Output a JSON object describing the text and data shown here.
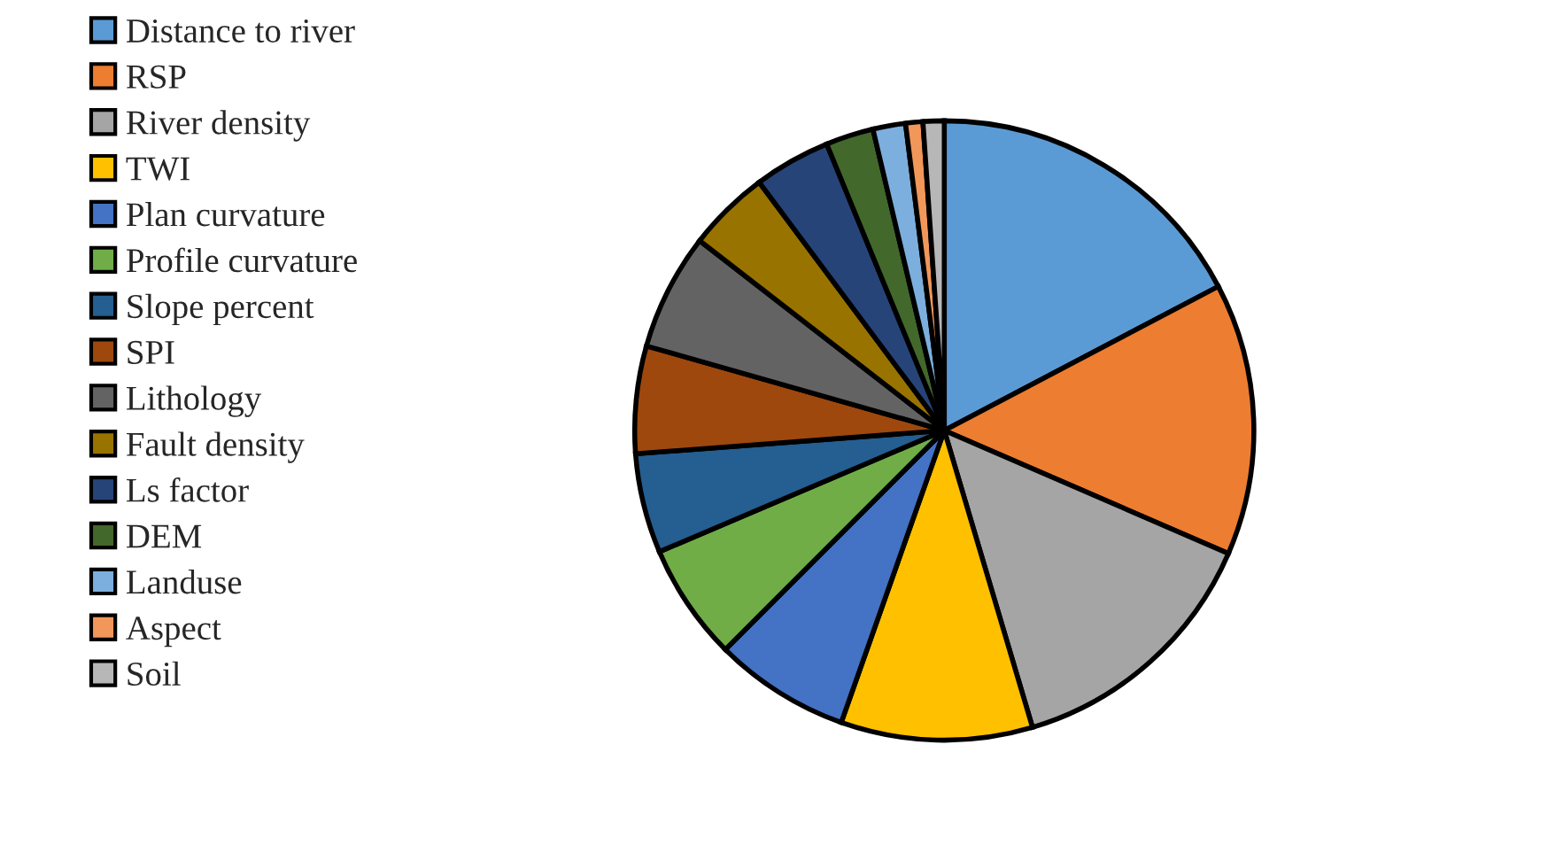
{
  "chart_data": {
    "type": "pie",
    "categories": [
      "Distance to river",
      "RSP",
      "River density",
      "TWI",
      "Plan curvature",
      "Profile curvature",
      "Slope percent",
      "SPI",
      "Lithology",
      "Fault density",
      "Ls factor",
      "DEM",
      "Landuse",
      "Aspect",
      "Soil"
    ],
    "values": [
      17.3,
      14.2,
      13.9,
      10,
      7.1,
      6.1,
      5.2,
      5.6,
      6.1,
      4.3,
      4.0,
      2.5,
      1.7,
      0.9,
      1.1
    ],
    "colors": [
      "#5b9bd5",
      "#ed7d31",
      "#a5a5a5",
      "#ffc000",
      "#4472c4",
      "#70ad47",
      "#255e91",
      "#9e480e",
      "#636363",
      "#997300",
      "#264478",
      "#43682b",
      "#7cafdd",
      "#f1975a",
      "#b7b7b7"
    ],
    "legend": "left"
  }
}
